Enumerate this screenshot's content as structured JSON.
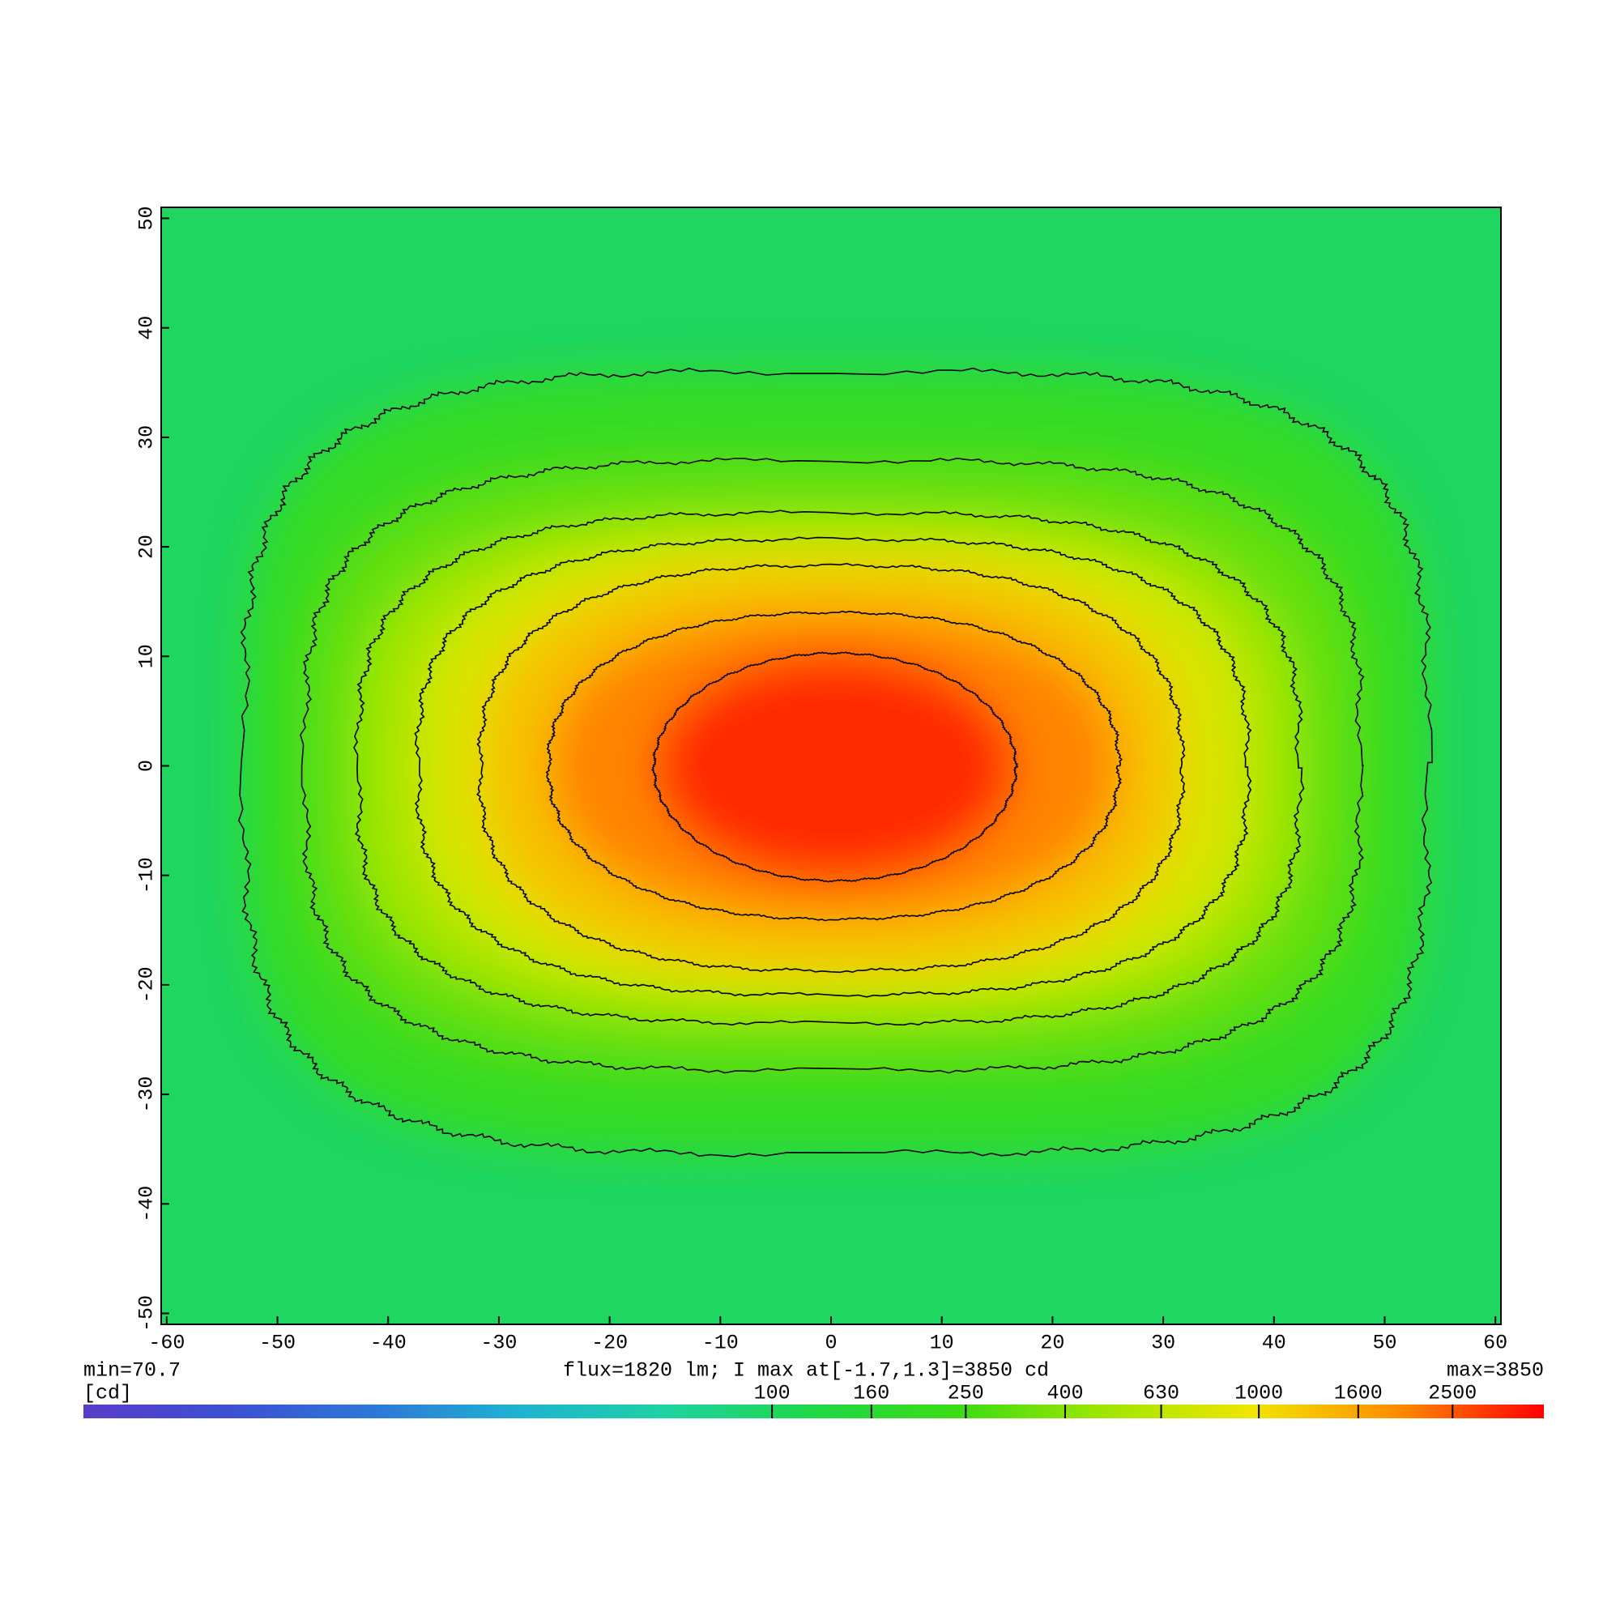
{
  "chart_data": {
    "type": "contour",
    "xlim": [
      -60.5,
      60.5
    ],
    "ylim": [
      -51,
      51
    ],
    "xticks": [
      -60,
      -50,
      -40,
      -30,
      -20,
      -10,
      0,
      10,
      20,
      30,
      40,
      50,
      60
    ],
    "yticks": [
      -50,
      -40,
      -30,
      -20,
      -10,
      0,
      10,
      20,
      30,
      40,
      50
    ],
    "contours": [
      {
        "level": 160,
        "x": [
          -53,
          53.9
        ],
        "y": [
          -35.4,
          36
        ]
      },
      {
        "level": 250,
        "x": [
          -47.5,
          47.8
        ],
        "y": [
          -27.8,
          27.9
        ]
      },
      {
        "level": 400,
        "x": [
          -42.7,
          42.3
        ],
        "y": [
          -23.5,
          23.1
        ]
      },
      {
        "level": 630,
        "x": [
          -37.3,
          37.6
        ],
        "y": [
          -20.9,
          20.7
        ]
      },
      {
        "level": 1000,
        "x": [
          -31.7,
          31.7
        ],
        "y": [
          -18.7,
          18.3
        ]
      },
      {
        "level": 1600,
        "x": [
          -25.5,
          26
        ],
        "y": [
          -14,
          14
        ]
      },
      {
        "level": 2500,
        "x": [
          -16,
          16.7
        ],
        "y": [
          -10.5,
          10.3
        ]
      }
    ],
    "min_label": "min=70.7",
    "max_label": "max=3850",
    "info": "flux=1820 lm; I max at[-1.7,1.3]=3850 cd",
    "colorbar": {
      "label": "[cd]",
      "lim": [
        3.85,
        3850
      ],
      "log": true,
      "ticks": [
        100,
        160,
        250,
        400,
        630,
        1000,
        1600,
        2500
      ],
      "colors": [
        "#5a3cc8",
        "#3c50d2",
        "#2d78d7",
        "#1eb4d2",
        "#1ed2a0",
        "#1ed846",
        "#3cdc14",
        "#a0e600",
        "#f0e600",
        "#ff8c00",
        "#ff0000"
      ]
    }
  }
}
